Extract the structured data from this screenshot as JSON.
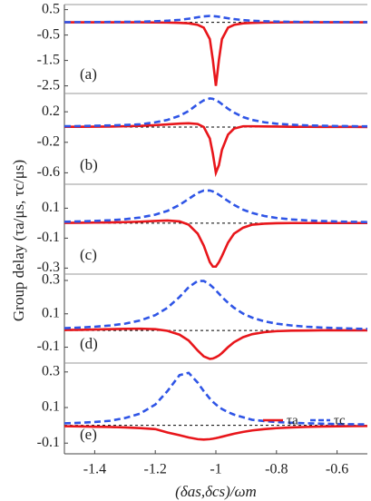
{
  "y_label": "Group delay (τa/μs, τc/μs)",
  "x_label": "(δas,δcs)/ωm",
  "chart_data": [
    {
      "type": "line",
      "label": "(a)",
      "xlim": [
        -1.5,
        -0.5
      ],
      "ylim": [
        -2.8,
        0.7
      ],
      "yticks": [
        0.5,
        -0.5,
        -1.5,
        -2.5
      ],
      "x": [
        -1.5,
        -1.45,
        -1.4,
        -1.35,
        -1.3,
        -1.25,
        -1.2,
        -1.16,
        -1.12,
        -1.09,
        -1.06,
        -1.04,
        -1.02,
        -1.01,
        -1.0,
        -0.99,
        -0.98,
        -0.96,
        -0.94,
        -0.91,
        -0.88,
        -0.84,
        -0.8,
        -0.75,
        -0.7,
        -0.65,
        -0.6,
        -0.55,
        -0.5
      ],
      "series": [
        {
          "color": "#e8161b",
          "dash": false,
          "values": [
            0,
            0,
            0,
            0,
            0,
            0,
            -0.005,
            -0.01,
            -0.02,
            -0.04,
            -0.1,
            -0.21,
            -0.66,
            -1.48,
            -2.5,
            -1.48,
            -0.66,
            -0.21,
            -0.1,
            -0.04,
            -0.02,
            -0.01,
            -0.005,
            0,
            0,
            0,
            0,
            0,
            0
          ]
        },
        {
          "color": "#2f55e6",
          "dash": true,
          "values": [
            0.007,
            0.008,
            0.011,
            0.014,
            0.018,
            0.024,
            0.041,
            0.062,
            0.098,
            0.141,
            0.2,
            0.235,
            0.25,
            0.246,
            0.235,
            0.219,
            0.2,
            0.16,
            0.125,
            0.087,
            0.062,
            0.041,
            0.029,
            0.02,
            0.015,
            0.011,
            0.009,
            0.007,
            0.006
          ]
        }
      ]
    },
    {
      "type": "line",
      "label": "(b)",
      "xlim": [
        -1.5,
        -0.5
      ],
      "ylim": [
        -0.75,
        0.44
      ],
      "yticks": [
        0.2,
        -0.2,
        -0.6
      ],
      "x": [
        -1.5,
        -1.45,
        -1.4,
        -1.35,
        -1.3,
        -1.25,
        -1.2,
        -1.16,
        -1.12,
        -1.09,
        -1.06,
        -1.04,
        -1.02,
        -1.01,
        -1.0,
        -0.99,
        -0.98,
        -0.96,
        -0.94,
        -0.91,
        -0.88,
        -0.84,
        -0.8,
        -0.75,
        -0.7,
        -0.65,
        -0.6,
        -0.55,
        -0.5
      ],
      "series": [
        {
          "color": "#e8161b",
          "dash": false,
          "values": [
            0.003,
            0.004,
            0.005,
            0.007,
            0.01,
            0.015,
            0.025,
            0.035,
            0.045,
            0.05,
            0.04,
            0.0,
            -0.15,
            -0.35,
            -0.6,
            -0.5,
            -0.3,
            -0.1,
            -0.02,
            0.01,
            0.01,
            0.008,
            0.006,
            0.004,
            0.003,
            0.002,
            0.002,
            0.002,
            0.001
          ]
        },
        {
          "color": "#2f55e6",
          "dash": true,
          "values": [
            0.011,
            0.012,
            0.017,
            0.021,
            0.027,
            0.036,
            0.062,
            0.093,
            0.147,
            0.21,
            0.3,
            0.35,
            0.375,
            0.37,
            0.35,
            0.33,
            0.3,
            0.24,
            0.19,
            0.13,
            0.093,
            0.062,
            0.044,
            0.03,
            0.022,
            0.017,
            0.013,
            0.011,
            0.009
          ]
        }
      ]
    },
    {
      "type": "line",
      "label": "(c)",
      "xlim": [
        -1.5,
        -0.5
      ],
      "ylim": [
        -0.34,
        0.26
      ],
      "yticks": [
        0.1,
        -0.1,
        -0.3
      ],
      "x": [
        -1.5,
        -1.45,
        -1.4,
        -1.35,
        -1.3,
        -1.25,
        -1.2,
        -1.16,
        -1.12,
        -1.09,
        -1.06,
        -1.04,
        -1.02,
        -1.01,
        -1.0,
        -0.99,
        -0.98,
        -0.96,
        -0.94,
        -0.91,
        -0.88,
        -0.84,
        -0.8,
        -0.75,
        -0.7,
        -0.65,
        -0.6,
        -0.55,
        -0.5
      ],
      "series": [
        {
          "color": "#e8161b",
          "dash": false,
          "values": [
            0.002,
            0.003,
            0.004,
            0.005,
            0.007,
            0.01,
            0.015,
            0.018,
            0.012,
            -0.01,
            -0.07,
            -0.15,
            -0.26,
            -0.29,
            -0.29,
            -0.26,
            -0.22,
            -0.13,
            -0.07,
            -0.03,
            -0.01,
            -0.003,
            0,
            0.001,
            0.001,
            0.001,
            0.001,
            0.001,
            0.001
          ]
        },
        {
          "color": "#2f55e6",
          "dash": true,
          "values": [
            0.0095,
            0.0118,
            0.015,
            0.0196,
            0.0265,
            0.038,
            0.057,
            0.082,
            0.122,
            0.162,
            0.202,
            0.218,
            0.218,
            0.212,
            0.202,
            0.19,
            0.176,
            0.148,
            0.122,
            0.09,
            0.068,
            0.048,
            0.035,
            0.025,
            0.0185,
            0.0143,
            0.0113,
            0.0092,
            0.0076
          ]
        }
      ]
    },
    {
      "type": "line",
      "label": "(d)",
      "xlim": [
        -1.5,
        -0.5
      ],
      "ylim": [
        -0.195,
        0.338
      ],
      "yticks": [
        0.3,
        0.1,
        -0.1
      ],
      "x": [
        -1.5,
        -1.45,
        -1.4,
        -1.35,
        -1.3,
        -1.25,
        -1.2,
        -1.16,
        -1.12,
        -1.09,
        -1.06,
        -1.04,
        -1.02,
        -1.01,
        -1.0,
        -0.99,
        -0.98,
        -0.96,
        -0.94,
        -0.91,
        -0.88,
        -0.84,
        -0.8,
        -0.75,
        -0.7,
        -0.65,
        -0.6,
        -0.55,
        -0.5
      ],
      "series": [
        {
          "color": "#e8161b",
          "dash": false,
          "values": [
            0.003,
            0.004,
            0.006,
            0.008,
            0.01,
            0.011,
            0.008,
            -0.002,
            -0.025,
            -0.06,
            -0.12,
            -0.155,
            -0.17,
            -0.168,
            -0.16,
            -0.15,
            -0.135,
            -0.1,
            -0.07,
            -0.04,
            -0.022,
            -0.01,
            -0.004,
            -0.001,
            0,
            0.001,
            0.001,
            0.001,
            0.001
          ]
        },
        {
          "color": "#2f55e6",
          "dash": true,
          "values": [
            0.0141,
            0.0176,
            0.0226,
            0.03,
            0.041,
            0.06,
            0.092,
            0.136,
            0.201,
            0.259,
            0.297,
            0.297,
            0.275,
            0.259,
            0.24,
            0.221,
            0.201,
            0.166,
            0.136,
            0.101,
            0.077,
            0.055,
            0.041,
            0.03,
            0.0226,
            0.0176,
            0.0141,
            0.0115,
            0.0096
          ]
        }
      ]
    },
    {
      "type": "line",
      "label": "(e)",
      "xlim": [
        -1.5,
        -0.5
      ],
      "ylim": [
        -0.16,
        0.35
      ],
      "yticks": [
        0.3,
        0.1,
        -0.1
      ],
      "xticks": [
        -1.4,
        -1.2,
        -1.0,
        -0.8,
        -0.6
      ],
      "x": [
        -1.5,
        -1.45,
        -1.4,
        -1.35,
        -1.3,
        -1.25,
        -1.2,
        -1.16,
        -1.12,
        -1.09,
        -1.06,
        -1.04,
        -1.02,
        -1.01,
        -1.0,
        -0.99,
        -0.98,
        -0.96,
        -0.94,
        -0.91,
        -0.88,
        -0.84,
        -0.8,
        -0.75,
        -0.7,
        -0.65,
        -0.6,
        -0.55,
        -0.5
      ],
      "series": [
        {
          "name": "τa",
          "color": "#e8161b",
          "dash": false,
          "values": [
            -0.0051,
            -0.0059,
            -0.008,
            -0.0092,
            -0.012,
            -0.0158,
            -0.0212,
            -0.04,
            -0.0554,
            -0.0683,
            -0.0778,
            -0.08,
            -0.0778,
            -0.0753,
            -0.072,
            -0.0683,
            -0.064,
            -0.0554,
            -0.0473,
            -0.0369,
            -0.0288,
            -0.0212,
            -0.016,
            -0.0117,
            -0.0089,
            -0.0069,
            -0.0056,
            -0.0045,
            -0.0038
          ]
        },
        {
          "name": "τc",
          "color": "#2f55e6",
          "dash": true,
          "values": [
            0.0115,
            0.0142,
            0.0187,
            0.0255,
            0.041,
            0.066,
            0.117,
            0.192,
            0.282,
            0.295,
            0.24,
            0.192,
            0.15,
            0.132,
            0.117,
            0.103,
            0.092,
            0.074,
            0.06,
            0.045,
            0.031,
            0.024,
            0.0187,
            0.0142,
            0.0115,
            0.0092,
            0.0073,
            0.0061,
            0.0052
          ]
        }
      ]
    }
  ]
}
